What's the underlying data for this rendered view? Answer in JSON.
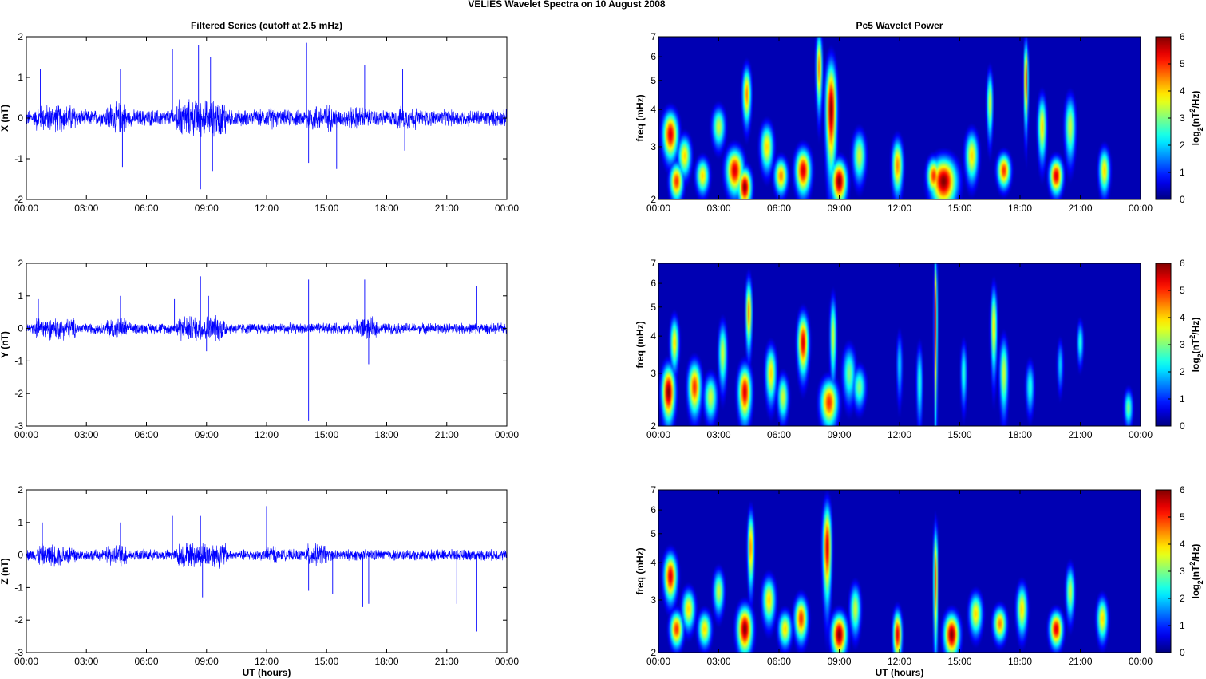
{
  "figure": {
    "title": "VELIES Wavelet Spectra on 10 August    2008",
    "left_title": "Filtered Series (cutoff at 2.5 mHz)",
    "right_title": "Pc5 Wavelet Power",
    "xlabel": "UT (hours)"
  },
  "chart_data": [
    {
      "type": "line",
      "name": "X",
      "ylabel": "X (nT)",
      "xticks": [
        "00:00",
        "03:00",
        "06:00",
        "09:00",
        "12:00",
        "15:00",
        "18:00",
        "21:00",
        "00:00"
      ],
      "xlim": [
        0,
        24
      ],
      "ylim": [
        -2,
        2
      ],
      "yticks": [
        -2,
        -1,
        0,
        1,
        2
      ],
      "line_color": "#0000ff",
      "base_amplitude": 0.18,
      "active_intervals": [
        [
          0.5,
          2.5,
          0.3
        ],
        [
          4,
          5,
          0.35
        ],
        [
          7.5,
          10,
          0.4
        ],
        [
          12,
          12.5,
          0.25
        ],
        [
          14,
          15.5,
          0.3
        ],
        [
          16,
          17,
          0.25
        ],
        [
          18.5,
          19.5,
          0.25
        ]
      ],
      "spikes": [
        [
          0.7,
          1.2
        ],
        [
          4.7,
          1.2
        ],
        [
          4.8,
          -1.2
        ],
        [
          7.3,
          1.7
        ],
        [
          8.6,
          1.8
        ],
        [
          8.7,
          -1.75
        ],
        [
          9.2,
          1.5
        ],
        [
          9.3,
          -1.3
        ],
        [
          14.0,
          1.85
        ],
        [
          14.1,
          -1.1
        ],
        [
          15.5,
          -1.25
        ],
        [
          16.9,
          1.3
        ],
        [
          18.8,
          1.2
        ],
        [
          18.9,
          -0.8
        ]
      ]
    },
    {
      "type": "line",
      "name": "Y",
      "ylabel": "Y (nT)",
      "xticks": [
        "00:00",
        "03:00",
        "06:00",
        "09:00",
        "12:00",
        "15:00",
        "18:00",
        "21:00",
        "00:00"
      ],
      "xlim": [
        0,
        24
      ],
      "ylim": [
        -3,
        2
      ],
      "yticks": [
        -3,
        -2,
        -1,
        0,
        1,
        2
      ],
      "line_color": "#0000ff",
      "base_amplitude": 0.15,
      "active_intervals": [
        [
          0.5,
          2.5,
          0.3
        ],
        [
          4,
          5,
          0.3
        ],
        [
          7.5,
          10,
          0.35
        ],
        [
          16.5,
          17.5,
          0.3
        ]
      ],
      "spikes": [
        [
          0.6,
          0.9
        ],
        [
          4.7,
          1.0
        ],
        [
          7.4,
          0.9
        ],
        [
          8.7,
          1.6
        ],
        [
          9.1,
          1.0
        ],
        [
          9.0,
          -0.7
        ],
        [
          14.1,
          1.5
        ],
        [
          14.1,
          -2.85
        ],
        [
          16.9,
          1.5
        ],
        [
          17.1,
          -1.1
        ],
        [
          22.5,
          1.3
        ]
      ]
    },
    {
      "type": "line",
      "name": "Z",
      "ylabel": "Z (nT)",
      "xticks": [
        "00:00",
        "03:00",
        "06:00",
        "09:00",
        "12:00",
        "15:00",
        "18:00",
        "21:00",
        "00:00"
      ],
      "xlim": [
        0,
        24
      ],
      "ylim": [
        -3,
        2
      ],
      "yticks": [
        -3,
        -2,
        -1,
        0,
        1,
        2
      ],
      "line_color": "#0000ff",
      "base_amplitude": 0.15,
      "active_intervals": [
        [
          0.5,
          2.5,
          0.3
        ],
        [
          4,
          5,
          0.3
        ],
        [
          7.5,
          10,
          0.35
        ],
        [
          12,
          12.5,
          0.3
        ],
        [
          14,
          15,
          0.3
        ]
      ],
      "spikes": [
        [
          0.8,
          1.0
        ],
        [
          4.7,
          1.0
        ],
        [
          7.3,
          1.2
        ],
        [
          8.7,
          1.2
        ],
        [
          8.8,
          -1.3
        ],
        [
          12.0,
          1.5
        ],
        [
          14.1,
          -1.1
        ],
        [
          15.3,
          -1.2
        ],
        [
          16.8,
          -1.6
        ],
        [
          17.1,
          -1.5
        ],
        [
          21.5,
          -1.5
        ],
        [
          22.5,
          -2.35
        ]
      ]
    },
    {
      "type": "heatmap",
      "name": "X power",
      "ylabel": "freq (mHz)",
      "colorbar_label": "log2(nT^2/Hz)",
      "xticks": [
        "00:00",
        "03:00",
        "06:00",
        "09:00",
        "12:00",
        "15:00",
        "18:00",
        "21:00",
        "00:00"
      ],
      "xlim": [
        0,
        24
      ],
      "ylim": [
        2,
        7
      ],
      "yscale": "log",
      "yticks": [
        2,
        3,
        4,
        5,
        6,
        7
      ],
      "clim": [
        0,
        6
      ],
      "cbar_ticks": [
        0,
        1,
        2,
        3,
        4,
        5,
        6
      ],
      "colormap": "jet",
      "blobs": [
        [
          0.6,
          3.3,
          0.35,
          0.55,
          5.5
        ],
        [
          0.9,
          2.3,
          0.3,
          0.3,
          5.0
        ],
        [
          1.3,
          2.8,
          0.3,
          0.4,
          4.0
        ],
        [
          2.2,
          2.4,
          0.3,
          0.3,
          4.0
        ],
        [
          3.0,
          3.5,
          0.3,
          0.5,
          3.5
        ],
        [
          3.8,
          2.5,
          0.4,
          0.4,
          5.5
        ],
        [
          4.3,
          2.2,
          0.3,
          0.3,
          6.0
        ],
        [
          4.4,
          4.5,
          0.2,
          0.9,
          4.5
        ],
        [
          5.4,
          3.0,
          0.3,
          0.5,
          4.0
        ],
        [
          6.1,
          2.4,
          0.3,
          0.3,
          4.5
        ],
        [
          7.2,
          2.5,
          0.35,
          0.4,
          5.5
        ],
        [
          8.0,
          5.5,
          0.15,
          1.5,
          4.5
        ],
        [
          8.6,
          4.0,
          0.25,
          1.5,
          6.0
        ],
        [
          9.0,
          2.3,
          0.35,
          0.35,
          6.0
        ],
        [
          10.0,
          2.8,
          0.3,
          0.5,
          3.5
        ],
        [
          11.9,
          2.6,
          0.25,
          0.5,
          4.5
        ],
        [
          13.7,
          2.4,
          0.3,
          0.3,
          5.0
        ],
        [
          14.2,
          2.3,
          0.6,
          0.4,
          6.0
        ],
        [
          15.6,
          2.8,
          0.3,
          0.5,
          4.0
        ],
        [
          16.5,
          4.2,
          0.15,
          1.0,
          3.5
        ],
        [
          17.2,
          2.5,
          0.3,
          0.3,
          5.0
        ],
        [
          18.3,
          5.0,
          0.1,
          1.5,
          5.0
        ],
        [
          19.1,
          3.5,
          0.2,
          0.8,
          4.0
        ],
        [
          19.8,
          2.4,
          0.3,
          0.3,
          5.5
        ],
        [
          20.5,
          3.5,
          0.25,
          0.8,
          3.5
        ],
        [
          22.2,
          2.5,
          0.25,
          0.4,
          4.0
        ]
      ]
    },
    {
      "type": "heatmap",
      "name": "Y power",
      "ylabel": "freq (mHz)",
      "colorbar_label": "log2(nT^2/Hz)",
      "xticks": [
        "00:00",
        "03:00",
        "06:00",
        "09:00",
        "12:00",
        "15:00",
        "18:00",
        "21:00",
        "00:00"
      ],
      "xlim": [
        0,
        24
      ],
      "ylim": [
        2,
        7
      ],
      "yscale": "log",
      "yticks": [
        2,
        3,
        4,
        5,
        6,
        7
      ],
      "clim": [
        0,
        6
      ],
      "cbar_ticks": [
        0,
        1,
        2,
        3,
        4,
        5,
        6
      ],
      "colormap": "jet",
      "blobs": [
        [
          0.5,
          2.6,
          0.3,
          0.5,
          6.0
        ],
        [
          0.8,
          3.8,
          0.2,
          0.7,
          4.0
        ],
        [
          1.8,
          2.7,
          0.3,
          0.5,
          5.0
        ],
        [
          2.6,
          2.5,
          0.3,
          0.4,
          3.5
        ],
        [
          3.2,
          3.5,
          0.2,
          0.8,
          3.5
        ],
        [
          4.3,
          2.6,
          0.3,
          0.5,
          5.5
        ],
        [
          4.5,
          4.8,
          0.15,
          1.2,
          4.5
        ],
        [
          5.6,
          3.0,
          0.25,
          0.6,
          4.0
        ],
        [
          6.2,
          2.5,
          0.25,
          0.4,
          3.5
        ],
        [
          7.2,
          3.8,
          0.25,
          0.8,
          5.5
        ],
        [
          8.5,
          2.4,
          0.4,
          0.4,
          5.0
        ],
        [
          8.7,
          4.0,
          0.15,
          1.2,
          3.5
        ],
        [
          9.5,
          3.0,
          0.3,
          0.6,
          3.0
        ],
        [
          10.0,
          2.7,
          0.3,
          0.4,
          3.0
        ],
        [
          12.0,
          3.2,
          0.15,
          0.8,
          2.0
        ],
        [
          13.0,
          2.8,
          0.15,
          0.8,
          2.5
        ],
        [
          13.8,
          4.5,
          0.07,
          2.5,
          5.5
        ],
        [
          15.2,
          3.0,
          0.15,
          0.7,
          2.5
        ],
        [
          16.7,
          4.3,
          0.15,
          1.3,
          4.0
        ],
        [
          17.2,
          3.0,
          0.2,
          0.8,
          3.5
        ],
        [
          18.5,
          2.7,
          0.2,
          0.5,
          2.5
        ],
        [
          20.0,
          3.2,
          0.15,
          0.6,
          2.0
        ],
        [
          21.0,
          3.8,
          0.15,
          0.6,
          2.5
        ],
        [
          23.4,
          2.3,
          0.2,
          0.3,
          3.0
        ]
      ]
    },
    {
      "type": "heatmap",
      "name": "Z power",
      "ylabel": "freq (mHz)",
      "colorbar_label": "log2(nT^2/Hz)",
      "xticks": [
        "00:00",
        "03:00",
        "06:00",
        "09:00",
        "12:00",
        "15:00",
        "18:00",
        "21:00",
        "00:00"
      ],
      "xlim": [
        0,
        24
      ],
      "ylim": [
        2,
        7
      ],
      "yscale": "log",
      "yticks": [
        2,
        3,
        4,
        5,
        6,
        7
      ],
      "clim": [
        0,
        6
      ],
      "cbar_ticks": [
        0,
        1,
        2,
        3,
        4,
        5,
        6
      ],
      "colormap": "jet",
      "blobs": [
        [
          0.6,
          3.6,
          0.3,
          0.6,
          5.5
        ],
        [
          0.9,
          2.4,
          0.3,
          0.3,
          5.0
        ],
        [
          1.5,
          2.8,
          0.3,
          0.4,
          4.0
        ],
        [
          2.3,
          2.4,
          0.3,
          0.3,
          4.0
        ],
        [
          3.0,
          3.2,
          0.25,
          0.5,
          3.5
        ],
        [
          4.3,
          2.4,
          0.35,
          0.4,
          6.0
        ],
        [
          4.6,
          4.5,
          0.15,
          1.2,
          4.5
        ],
        [
          5.5,
          3.0,
          0.3,
          0.5,
          4.0
        ],
        [
          6.3,
          2.4,
          0.3,
          0.3,
          4.0
        ],
        [
          7.1,
          2.6,
          0.3,
          0.4,
          5.0
        ],
        [
          8.4,
          4.5,
          0.2,
          1.5,
          5.5
        ],
        [
          9.0,
          2.3,
          0.35,
          0.35,
          6.0
        ],
        [
          9.8,
          2.8,
          0.25,
          0.5,
          3.5
        ],
        [
          11.9,
          2.3,
          0.2,
          0.4,
          5.5
        ],
        [
          13.8,
          3.5,
          0.1,
          1.5,
          5.0
        ],
        [
          14.6,
          2.3,
          0.35,
          0.35,
          6.0
        ],
        [
          15.8,
          2.7,
          0.3,
          0.4,
          4.0
        ],
        [
          17.0,
          2.5,
          0.3,
          0.3,
          4.5
        ],
        [
          18.1,
          2.8,
          0.25,
          0.5,
          4.0
        ],
        [
          19.8,
          2.4,
          0.3,
          0.3,
          5.5
        ],
        [
          20.5,
          3.2,
          0.2,
          0.6,
          3.5
        ],
        [
          22.1,
          2.6,
          0.25,
          0.4,
          4.0
        ]
      ]
    }
  ]
}
